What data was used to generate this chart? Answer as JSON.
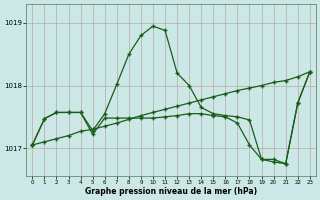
{
  "title": "Graphe pression niveau de la mer (hPa)",
  "bg_color": "#cce8e6",
  "vgrid_color": "#b8a8a8",
  "hgrid_color": "#b8a8a8",
  "line_color": "#1a5c1a",
  "hours": [
    0,
    1,
    2,
    3,
    4,
    5,
    6,
    7,
    8,
    9,
    10,
    11,
    12,
    13,
    14,
    15,
    16,
    17,
    18,
    19,
    20,
    21,
    22,
    23
  ],
  "ylim": [
    1016.55,
    1019.3
  ],
  "yticks": [
    1017,
    1018,
    1019
  ],
  "curve_peak": [
    1017.05,
    1017.47,
    1017.57,
    1017.57,
    1017.57,
    1017.28,
    1017.55,
    1018.02,
    1018.5,
    1018.8,
    1018.95,
    1018.88,
    1018.2,
    1018.0,
    1017.65,
    1017.55,
    1017.52,
    1017.5,
    1017.45,
    1016.82,
    1016.82,
    1016.75,
    1017.72,
    1018.22
  ],
  "curve_straight": [
    1017.05,
    1017.1,
    1017.15,
    1017.2,
    1017.27,
    1017.3,
    1017.35,
    1017.4,
    1017.46,
    1017.52,
    1017.57,
    1017.62,
    1017.67,
    1017.72,
    1017.77,
    1017.82,
    1017.87,
    1017.92,
    1017.96,
    1018.0,
    1018.05,
    1018.08,
    1018.14,
    1018.22
  ],
  "curve_bottom": [
    1017.05,
    1017.47,
    1017.57,
    1017.57,
    1017.57,
    1017.22,
    1017.48,
    1017.48,
    1017.48,
    1017.48,
    1017.48,
    1017.5,
    1017.52,
    1017.55,
    1017.55,
    1017.52,
    1017.5,
    1017.4,
    1017.05,
    1016.82,
    1016.78,
    1016.75,
    1017.72,
    1018.22
  ]
}
